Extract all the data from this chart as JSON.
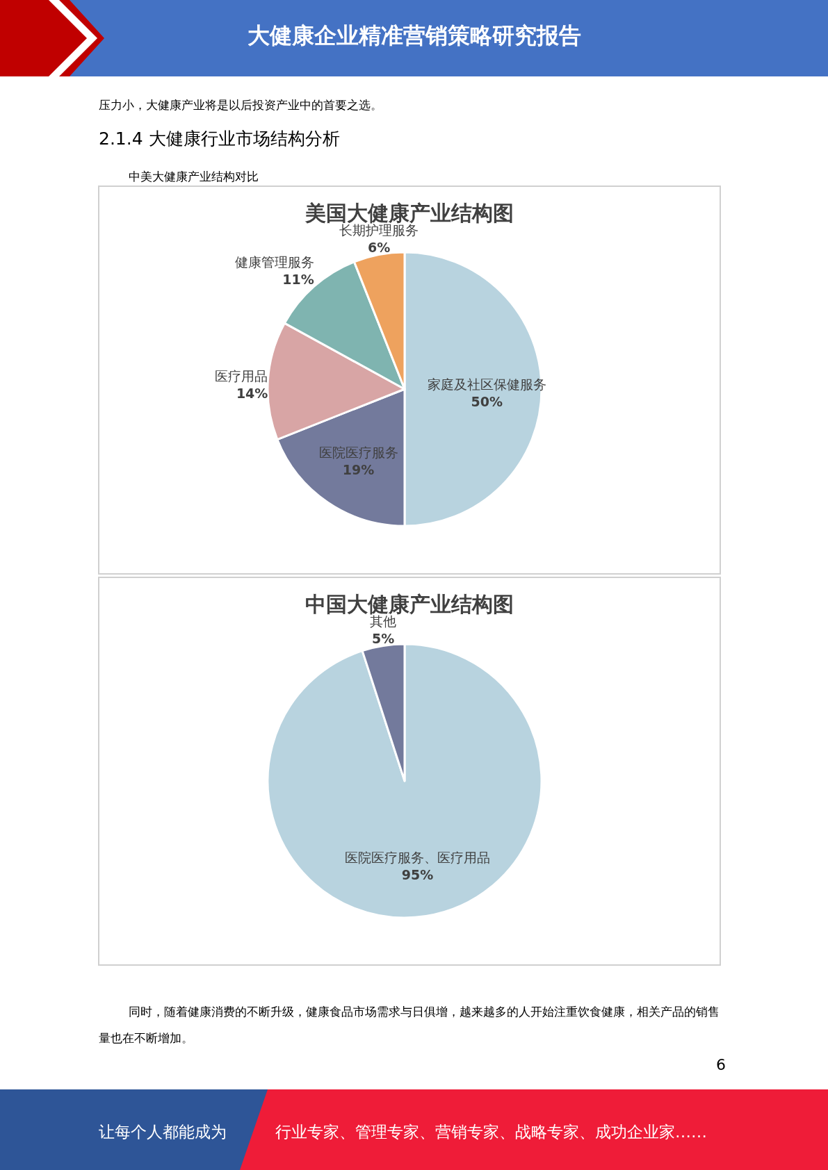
{
  "chart_data": [
    {
      "type": "pie",
      "title": "美国大健康产业结构图",
      "categories": [
        "家庭及社区保健服务",
        "医院医疗服务",
        "医疗用品",
        "健康管理服务",
        "长期护理服务"
      ],
      "values": [
        50,
        19,
        14,
        11,
        6
      ],
      "value_labels": [
        "50%",
        "19%",
        "14%",
        "11%",
        "6%"
      ],
      "colors": [
        "#b8d3df",
        "#737a9c",
        "#d8a5a5",
        "#7fb4b0",
        "#eea25e"
      ],
      "annotations": [
        "大健康企业精准营销策略研究报告",
        "压力小，大健康产业将是以后投资产业中的首要之选。",
        "2.1.4 大健康行业市场结构分析",
        "中美大健康产业结构对比"
      ]
    },
    {
      "type": "pie",
      "title": "中国大健康产业结构图",
      "categories": [
        "医院医疗服务、医疗用品",
        "其他"
      ],
      "values": [
        95,
        5
      ],
      "value_labels": [
        "95%",
        "5%"
      ],
      "colors": [
        "#b8d3df",
        "#737a9c"
      ],
      "annotations": [
        "同时，随着健康消费的不断升级，健康食品市场需求与日俱增，越来越多的人开始注重饮食健康，相关产品的销售量也在不断增加。",
        "6",
        "让每个人都能成为",
        "行业专家、管理专家、营销专家、战略专家、成功企业家……"
      ]
    }
  ]
}
